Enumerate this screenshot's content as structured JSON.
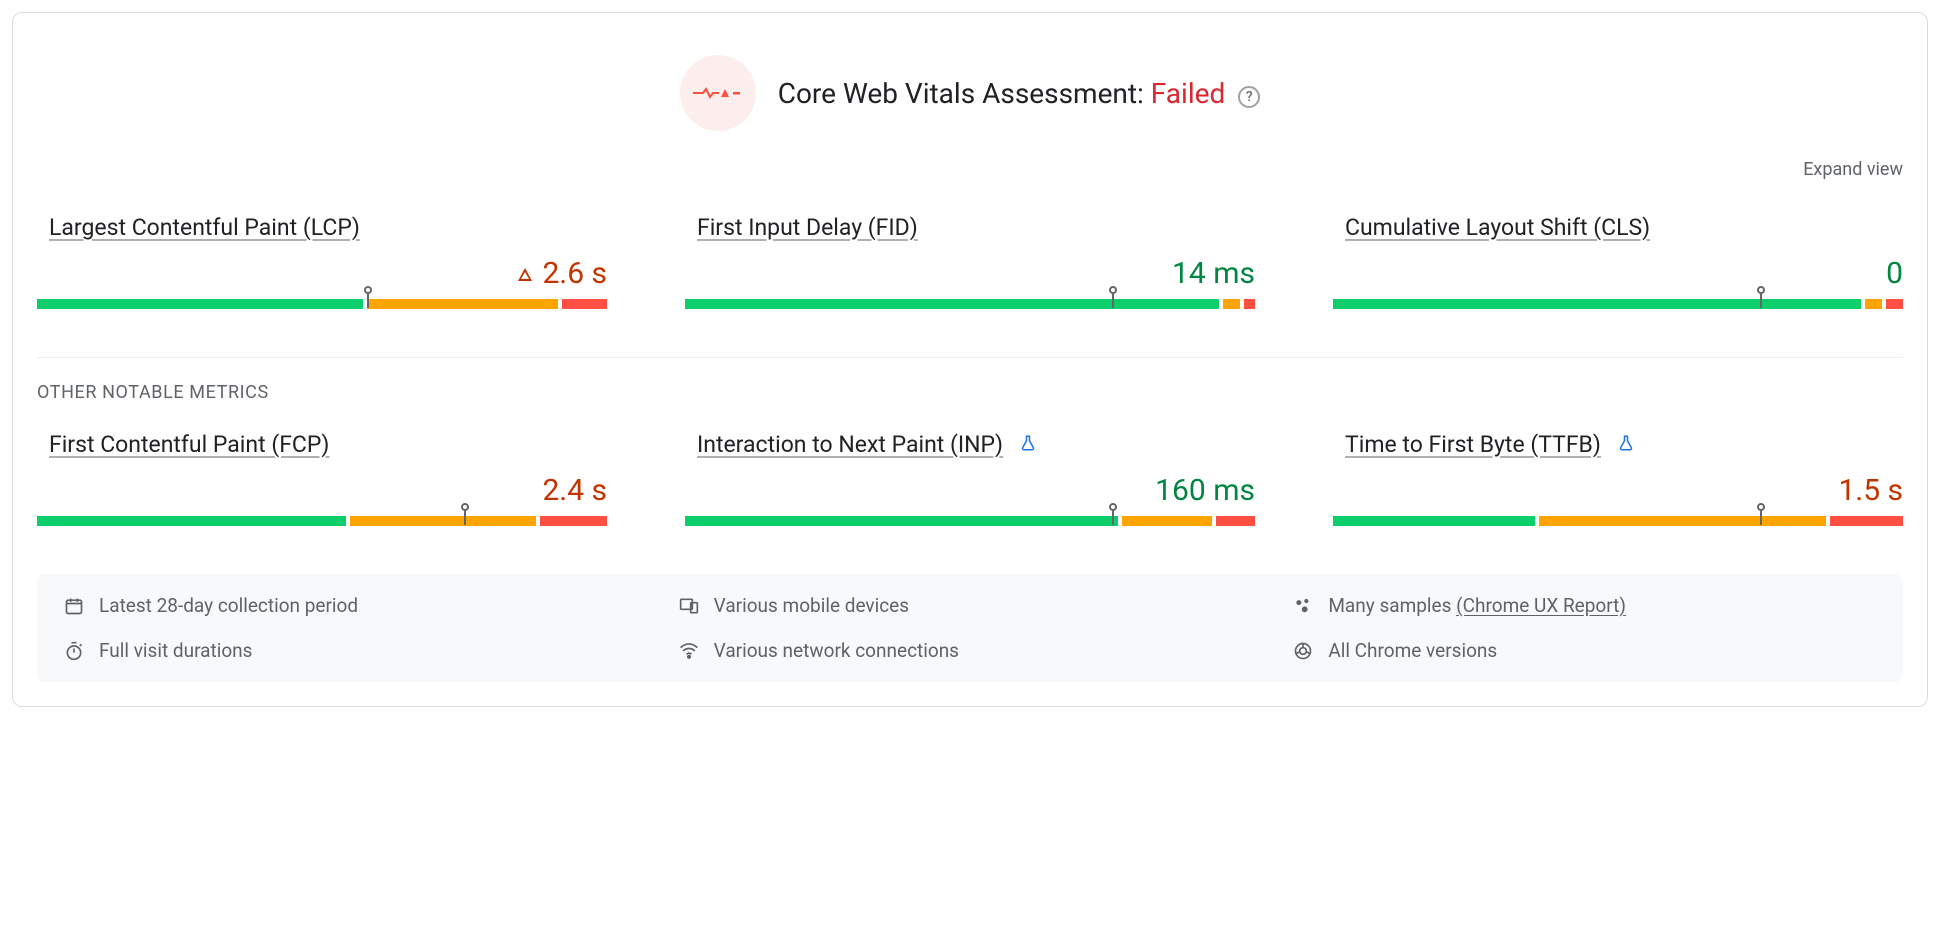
{
  "colors": {
    "good": "#0cce6b",
    "average": "#ffa400",
    "poor": "#ff4e42",
    "good_text": "#018642",
    "average_text": "#c33300",
    "poor_text": "#d8272f",
    "badge_bg": "#fdeeee",
    "border": "#dadce0",
    "footnote_bg": "#f8f9fa",
    "text_secondary": "#5f6368",
    "flask": "#1a73e8"
  },
  "header": {
    "title_prefix": "Core Web Vitals Assessment: ",
    "status_text": "Failed",
    "status_level": "poor",
    "expand_label": "Expand view"
  },
  "section_heading": "OTHER NOTABLE METRICS",
  "metrics_top": [
    {
      "id": "lcp",
      "name": "Largest Contentful Paint (LCP)",
      "status": "average",
      "status_shape": "square",
      "value": "2.6 s",
      "value_class": "avg",
      "value_icon": "warn",
      "experimental": false,
      "distribution": {
        "good": 58,
        "average": 34,
        "poor": 8
      },
      "marker_pct": 58
    },
    {
      "id": "fid",
      "name": "First Input Delay (FID)",
      "status": "good",
      "status_shape": "circle",
      "value": "14 ms",
      "value_class": "good",
      "value_icon": null,
      "experimental": false,
      "distribution": {
        "good": 95,
        "average": 3,
        "poor": 2
      },
      "marker_pct": 75
    },
    {
      "id": "cls",
      "name": "Cumulative Layout Shift (CLS)",
      "status": "good",
      "status_shape": "circle",
      "value": "0",
      "value_class": "good",
      "value_icon": null,
      "experimental": false,
      "distribution": {
        "good": 94,
        "average": 3,
        "poor": 3
      },
      "marker_pct": 75
    }
  ],
  "metrics_bottom": [
    {
      "id": "fcp",
      "name": "First Contentful Paint (FCP)",
      "status": "average",
      "status_shape": "square",
      "value": "2.4 s",
      "value_class": "avg",
      "value_icon": null,
      "experimental": false,
      "distribution": {
        "good": 55,
        "average": 33,
        "poor": 12
      },
      "marker_pct": 75
    },
    {
      "id": "inp",
      "name": "Interaction to Next Paint (INP)",
      "status": "good",
      "status_shape": "circle",
      "value": "160 ms",
      "value_class": "good",
      "value_icon": null,
      "experimental": true,
      "distribution": {
        "good": 77,
        "average": 16,
        "poor": 7
      },
      "marker_pct": 75
    },
    {
      "id": "ttfb",
      "name": "Time to First Byte (TTFB)",
      "status": "average",
      "status_shape": "square",
      "value": "1.5 s",
      "value_class": "avg",
      "value_icon": null,
      "experimental": true,
      "distribution": {
        "good": 36,
        "average": 51,
        "poor": 13
      },
      "marker_pct": 75
    }
  ],
  "footnotes": [
    {
      "icon": "calendar",
      "text": "Latest 28-day collection period",
      "link": null
    },
    {
      "icon": "devices",
      "text": "Various mobile devices",
      "link": null
    },
    {
      "icon": "samples",
      "text": "Many samples ",
      "link": "(Chrome UX Report)"
    },
    {
      "icon": "timer",
      "text": "Full visit durations",
      "link": null
    },
    {
      "icon": "network",
      "text": "Various network connections",
      "link": null
    },
    {
      "icon": "chrome",
      "text": "All Chrome versions",
      "link": null
    }
  ]
}
